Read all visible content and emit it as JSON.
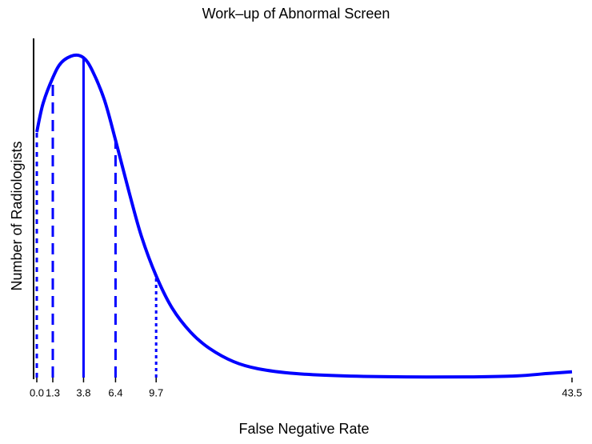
{
  "chart_data": {
    "type": "density",
    "title": "Work–up of Abnormal Screen",
    "x_label": "False Negative Rate",
    "y_label": "Number of Radiologists",
    "xlim": [
      0,
      43.5
    ],
    "ylim": [
      0,
      1
    ],
    "xticks": [
      {
        "value": 0,
        "label": "0.0"
      },
      1.3,
      3.8,
      6.4,
      9.7,
      43.5
    ],
    "curve": {
      "color": "#0000ff",
      "x": [
        0,
        0.5,
        1.3,
        2,
        3,
        3.8,
        4.5,
        5.5,
        6.4,
        7.5,
        8.5,
        9.7,
        11,
        12.5,
        14,
        16,
        18,
        21,
        25,
        30,
        35,
        39,
        41.5,
        43.5
      ],
      "values": [
        0.724,
        0.807,
        0.884,
        0.929,
        0.95,
        0.943,
        0.906,
        0.818,
        0.7,
        0.547,
        0.417,
        0.3,
        0.205,
        0.134,
        0.087,
        0.047,
        0.026,
        0.012,
        0.005,
        0.002,
        0.002,
        0.005,
        0.012,
        0.017
      ]
    },
    "reference_lines": {
      "color": "#0000ff",
      "x": [
        0,
        1.3,
        3.8,
        6.4,
        9.7
      ],
      "values": [
        0.724,
        0.884,
        0.943,
        0.7,
        0.3
      ],
      "styles": [
        "short-dash",
        "dashed",
        "solid",
        "dashed",
        "dotted"
      ]
    }
  }
}
